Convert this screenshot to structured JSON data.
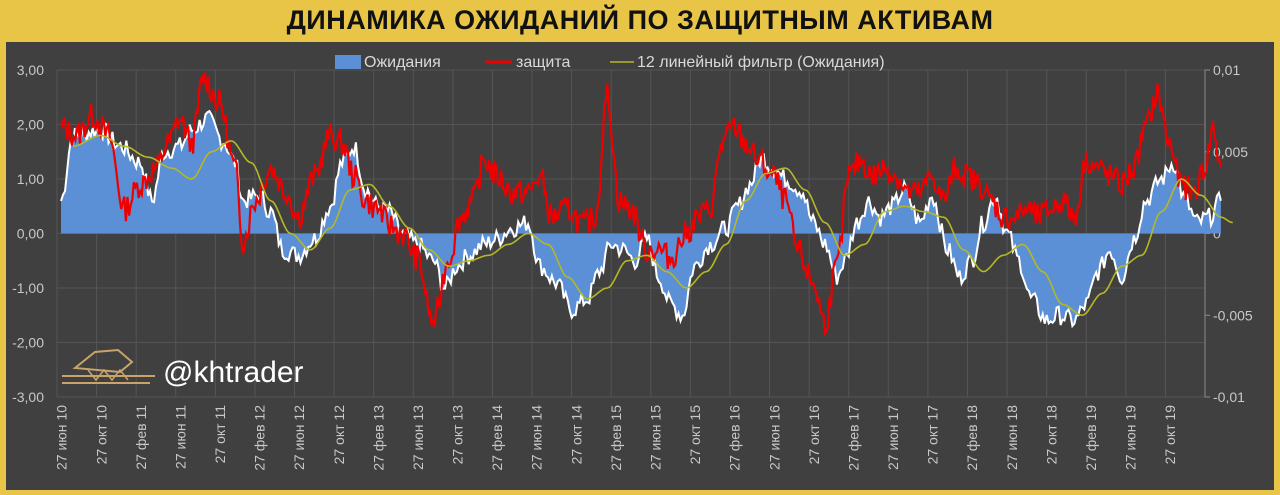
{
  "title": "ДИНАМИКА ОЖИДАНИЙ ПО ЗАЩИТНЫМ АКТИВАМ",
  "watermark": "@khtrader",
  "colors": {
    "background": "#404040",
    "frame": "#e8c547",
    "expectations_fill": "#5b8fd6",
    "expectations_line": "#ffffff",
    "protection": "#ee0000",
    "filter": "#b5b825",
    "grid": "#555555"
  },
  "chart_data": {
    "type": "area",
    "title": "ДИНАМИКА ОЖИДАНИЙ ПО ЗАЩИТНЫМ АКТИВАМ",
    "legend_position": "top-center",
    "grid": true,
    "x_ticks": [
      "27 июн 10",
      "27 окт 10",
      "27 фев 11",
      "27 июн 11",
      "27 окт 11",
      "27 фев 12",
      "27 июн 12",
      "27 окт 12",
      "27 фев 13",
      "27 июн 13",
      "27 окт 13",
      "27 фев 14",
      "27 июн 14",
      "27 окт 14",
      "27 фев 15",
      "27 июн 15",
      "27 окт 15",
      "27 фев 16",
      "27 июн 16",
      "27 окт 16",
      "27 фев 17",
      "27 июн 17",
      "27 окт 17",
      "27 фев 18",
      "27 июн 18",
      "27 окт 18",
      "27 фев 19",
      "27 июн 19",
      "27 окт 19"
    ],
    "y_left": {
      "ticks": [
        "3,00",
        "2,00",
        "1,00",
        "0,00",
        "-1,00",
        "-2,00",
        "-3,00"
      ],
      "values": [
        3,
        2,
        1,
        0,
        -1,
        -2,
        -3
      ],
      "ylim": [
        -3,
        3
      ]
    },
    "y_right": {
      "ticks": [
        "0,01",
        "0,005",
        "0",
        "-0,005",
        "-0,01"
      ],
      "values": [
        0.01,
        0.005,
        0,
        -0.005,
        -0.01
      ],
      "ylim": [
        -0.01,
        0.01
      ]
    },
    "series": [
      {
        "name": "Ожидания",
        "kind": "area",
        "axis": "left",
        "keypoints": [
          [
            0,
            0.6
          ],
          [
            0.3,
            1.8
          ],
          [
            1,
            1.9
          ],
          [
            1.5,
            1.6
          ],
          [
            2,
            1.3
          ],
          [
            2.3,
            0.6
          ],
          [
            2.6,
            1.5
          ],
          [
            3,
            1.6
          ],
          [
            3.3,
            1.9
          ],
          [
            3.7,
            2.1
          ],
          [
            4.1,
            1.7
          ],
          [
            4.4,
            1.3
          ],
          [
            4.6,
            0.6
          ],
          [
            5,
            0.7
          ],
          [
            5.3,
            0.4
          ],
          [
            5.6,
            -0.3
          ],
          [
            6,
            -0.4
          ],
          [
            6.4,
            -0.1
          ],
          [
            6.8,
            0.5
          ],
          [
            7.1,
            1.3
          ],
          [
            7.4,
            1.6
          ],
          [
            7.7,
            0.8
          ],
          [
            8,
            0.5
          ],
          [
            8.3,
            0.4
          ],
          [
            8.6,
            0.0
          ],
          [
            9,
            -0.2
          ],
          [
            9.4,
            -0.5
          ],
          [
            9.7,
            -1.0
          ],
          [
            10,
            -0.6
          ],
          [
            10.3,
            -0.4
          ],
          [
            10.7,
            -0.2
          ],
          [
            11,
            -0.1
          ],
          [
            11.4,
            0.1
          ],
          [
            11.8,
            0.2
          ],
          [
            12.1,
            -0.6
          ],
          [
            12.5,
            -0.9
          ],
          [
            12.9,
            -1.4
          ],
          [
            13.3,
            -1.2
          ],
          [
            13.6,
            -0.7
          ],
          [
            13.9,
            -0.2
          ],
          [
            14.2,
            -0.3
          ],
          [
            14.5,
            -0.5
          ],
          [
            14.8,
            -0.1
          ],
          [
            15.1,
            -0.8
          ],
          [
            15.4,
            -1.3
          ],
          [
            15.7,
            -1.5
          ],
          [
            16,
            -0.6
          ],
          [
            16.4,
            -0.2
          ],
          [
            16.8,
            0.1
          ],
          [
            17.1,
            0.5
          ],
          [
            17.4,
            0.9
          ],
          [
            17.7,
            1.4
          ],
          [
            18,
            1.2
          ],
          [
            18.3,
            1.0
          ],
          [
            18.7,
            0.8
          ],
          [
            19,
            0.2
          ],
          [
            19.3,
            -0.2
          ],
          [
            19.6,
            -0.8
          ],
          [
            19.8,
            -0.5
          ],
          [
            20.1,
            0.2
          ],
          [
            20.4,
            0.6
          ],
          [
            20.7,
            0.3
          ],
          [
            21,
            0.5
          ],
          [
            21.3,
            0.8
          ],
          [
            21.7,
            0.2
          ],
          [
            22,
            0.7
          ],
          [
            22.4,
            -0.3
          ],
          [
            22.7,
            -0.8
          ],
          [
            23,
            -0.5
          ],
          [
            23.3,
            0.2
          ],
          [
            23.6,
            0.7
          ],
          [
            23.9,
            0.0
          ],
          [
            24.2,
            -0.5
          ],
          [
            24.5,
            -1.2
          ],
          [
            24.9,
            -1.6
          ],
          [
            25.2,
            -1.5
          ],
          [
            25.6,
            -1.6
          ],
          [
            25.9,
            -1.3
          ],
          [
            26.2,
            -0.7
          ],
          [
            26.5,
            -0.3
          ],
          [
            26.8,
            -0.8
          ],
          [
            27.1,
            -0.1
          ],
          [
            27.4,
            0.6
          ],
          [
            27.8,
            1.0
          ],
          [
            28.1,
            1.3
          ],
          [
            28.4,
            0.6
          ],
          [
            28.7,
            0.2
          ],
          [
            29,
            0.3
          ],
          [
            29.3,
            0.6
          ]
        ]
      },
      {
        "name": "защита",
        "kind": "line",
        "axis": "right",
        "keypoints": [
          [
            0,
            0.0065
          ],
          [
            0.4,
            0.006
          ],
          [
            0.8,
            0.0072
          ],
          [
            1.2,
            0.006
          ],
          [
            1.6,
            0.0015
          ],
          [
            2,
            0.003
          ],
          [
            2.4,
            0.004
          ],
          [
            2.7,
            0.0055
          ],
          [
            3,
            0.007
          ],
          [
            3.3,
            0.0055
          ],
          [
            3.6,
            0.0095
          ],
          [
            4,
            0.008
          ],
          [
            4.4,
            0.004
          ],
          [
            4.6,
            -0.0005
          ],
          [
            4.9,
            0.002
          ],
          [
            5.3,
            0.004
          ],
          [
            5.7,
            0.0025
          ],
          [
            6,
            0.001
          ],
          [
            6.4,
            0.0035
          ],
          [
            6.8,
            0.006
          ],
          [
            7.1,
            0.0055
          ],
          [
            7.4,
            0.0035
          ],
          [
            7.7,
            0.002
          ],
          [
            8,
            0.0015
          ],
          [
            8.3,
            0.0005
          ],
          [
            8.6,
            0.0
          ],
          [
            9,
            -0.0015
          ],
          [
            9.4,
            -0.0055
          ],
          [
            9.8,
            -0.0015
          ],
          [
            10.1,
            0.001
          ],
          [
            10.4,
            0.002
          ],
          [
            10.7,
            0.0045
          ],
          [
            11,
            0.0035
          ],
          [
            11.4,
            0.0025
          ],
          [
            11.8,
            0.0025
          ],
          [
            12.1,
            0.0035
          ],
          [
            12.4,
            0.001
          ],
          [
            12.8,
            0.0015
          ],
          [
            13.2,
            0.0005
          ],
          [
            13.5,
            0.001
          ],
          [
            13.8,
            0.0085
          ],
          [
            14.1,
            0.002
          ],
          [
            14.4,
            0.0015
          ],
          [
            14.8,
            -0.001
          ],
          [
            15.1,
            -0.001
          ],
          [
            15.4,
            -0.0015
          ],
          [
            15.8,
            0.0
          ],
          [
            16.1,
            0.001
          ],
          [
            16.4,
            0.0015
          ],
          [
            16.7,
            0.0055
          ],
          [
            17,
            0.0065
          ],
          [
            17.3,
            0.0055
          ],
          [
            17.6,
            0.0045
          ],
          [
            18,
            0.0035
          ],
          [
            18.3,
            0.002
          ],
          [
            18.6,
            -0.001
          ],
          [
            19,
            -0.003
          ],
          [
            19.3,
            -0.0055
          ],
          [
            19.6,
            -0.002
          ],
          [
            19.9,
            0.0035
          ],
          [
            20.2,
            0.0045
          ],
          [
            20.5,
            0.0035
          ],
          [
            20.8,
            0.004
          ],
          [
            21.1,
            0.0035
          ],
          [
            21.4,
            0.0025
          ],
          [
            21.7,
            0.0025
          ],
          [
            22,
            0.0035
          ],
          [
            22.3,
            0.002
          ],
          [
            22.6,
            0.004
          ],
          [
            22.9,
            0.0035
          ],
          [
            23.2,
            0.003
          ],
          [
            23.5,
            0.002
          ],
          [
            23.8,
            0.001
          ],
          [
            24.1,
            0.001
          ],
          [
            24.4,
            0.0015
          ],
          [
            24.7,
            0.001
          ],
          [
            25,
            0.0015
          ],
          [
            25.3,
            0.002
          ],
          [
            25.6,
            0.001
          ],
          [
            25.9,
            0.0045
          ],
          [
            26.2,
            0.004
          ],
          [
            26.5,
            0.0035
          ],
          [
            26.8,
            0.003
          ],
          [
            27.1,
            0.004
          ],
          [
            27.4,
            0.0065
          ],
          [
            27.7,
            0.0085
          ],
          [
            28,
            0.0055
          ],
          [
            28.3,
            0.003
          ],
          [
            28.6,
            0.0025
          ],
          [
            28.9,
            0.004
          ],
          [
            29.1,
            0.0065
          ],
          [
            29.3,
            0.004
          ]
        ]
      },
      {
        "name": "12 линейный фильтр (Ожидания)",
        "kind": "line",
        "axis": "left",
        "keypoints": [
          [
            0.3,
            1.6
          ],
          [
            1,
            1.8
          ],
          [
            1.6,
            1.6
          ],
          [
            2.2,
            1.4
          ],
          [
            2.8,
            1.2
          ],
          [
            3.3,
            1.0
          ],
          [
            3.8,
            1.5
          ],
          [
            4.3,
            1.7
          ],
          [
            4.8,
            1.3
          ],
          [
            5.3,
            0.6
          ],
          [
            5.8,
            0.0
          ],
          [
            6.3,
            -0.3
          ],
          [
            6.8,
            0.1
          ],
          [
            7.3,
            0.8
          ],
          [
            7.8,
            0.9
          ],
          [
            8.3,
            0.5
          ],
          [
            8.8,
            0.1
          ],
          [
            9.3,
            -0.3
          ],
          [
            9.8,
            -0.6
          ],
          [
            10.3,
            -0.5
          ],
          [
            10.8,
            -0.4
          ],
          [
            11.3,
            -0.2
          ],
          [
            11.8,
            0.0
          ],
          [
            12.3,
            -0.2
          ],
          [
            12.8,
            -0.8
          ],
          [
            13.3,
            -1.2
          ],
          [
            13.8,
            -1.0
          ],
          [
            14.3,
            -0.5
          ],
          [
            14.8,
            -0.4
          ],
          [
            15.3,
            -0.7
          ],
          [
            15.8,
            -1.0
          ],
          [
            16.3,
            -0.7
          ],
          [
            16.8,
            -0.2
          ],
          [
            17.3,
            0.6
          ],
          [
            17.8,
            1.1
          ],
          [
            18.3,
            1.2
          ],
          [
            18.8,
            0.8
          ],
          [
            19.3,
            0.2
          ],
          [
            19.8,
            -0.4
          ],
          [
            20.3,
            -0.2
          ],
          [
            20.8,
            0.4
          ],
          [
            21.3,
            0.5
          ],
          [
            21.8,
            0.4
          ],
          [
            22.3,
            0.3
          ],
          [
            22.8,
            -0.3
          ],
          [
            23.3,
            -0.7
          ],
          [
            23.8,
            -0.4
          ],
          [
            24.3,
            -0.2
          ],
          [
            24.8,
            -0.7
          ],
          [
            25.3,
            -1.3
          ],
          [
            25.8,
            -1.5
          ],
          [
            26.3,
            -1.1
          ],
          [
            26.8,
            -0.6
          ],
          [
            27.3,
            -0.4
          ],
          [
            27.8,
            0.4
          ],
          [
            28.3,
            1.0
          ],
          [
            28.8,
            0.7
          ],
          [
            29.3,
            0.3
          ],
          [
            29.6,
            0.2
          ]
        ]
      }
    ]
  }
}
